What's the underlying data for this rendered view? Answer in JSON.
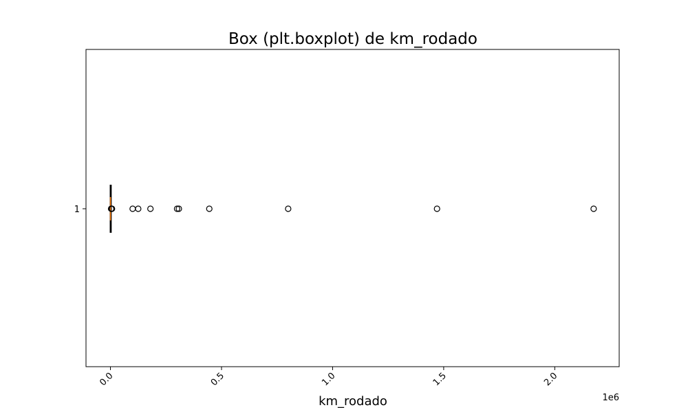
{
  "chart_data": {
    "type": "boxplot",
    "orientation": "horizontal",
    "title": "Box (plt.boxplot) de km_rodado",
    "xlabel": "km_rodado",
    "ylabel": "",
    "x_offset_label": "1e6",
    "xlim": [
      -110000,
      2290000
    ],
    "x_ticks": [
      0,
      0.5,
      1.0,
      1.5,
      2.0
    ],
    "x_tick_labels": [
      "0.0",
      "0.5",
      "1.0",
      "1.5",
      "2.0"
    ],
    "x_tick_scale": 1000000,
    "y_tick_labels": [
      "1"
    ],
    "grid": false,
    "series": [
      {
        "category": "1",
        "whisker_low": 0,
        "q1": 0,
        "median": 0,
        "q3": 1000,
        "whisker_high": 2500,
        "outliers": [
          3000,
          5000,
          7000,
          100000,
          125000,
          180000,
          300000,
          308000,
          445000,
          800000,
          1470000,
          2175000
        ]
      }
    ],
    "colors": {
      "box": "#000000",
      "median": "#ff7f0e",
      "outlier_edge": "#000000"
    }
  }
}
